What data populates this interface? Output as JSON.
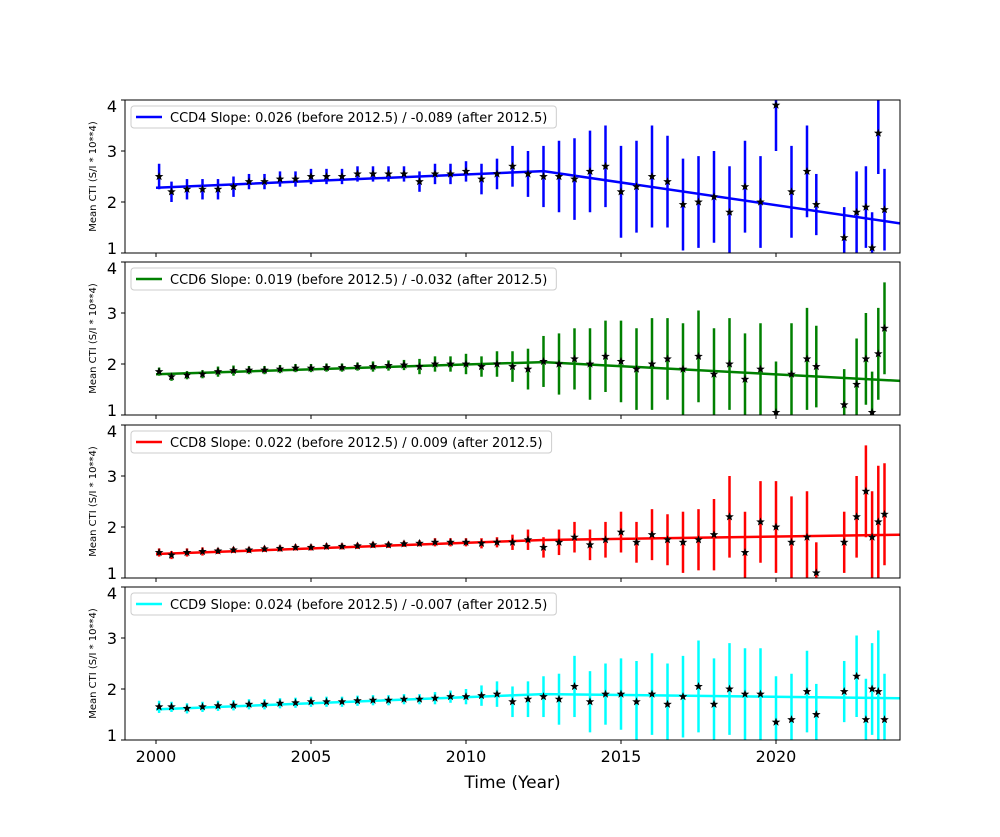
{
  "chart_data": [
    {
      "type": "scatter",
      "series_name": "CCD4",
      "legend": "CCD4 Slope: 0.026 (before 2012.5) / -0.089 (after 2012.5)",
      "color": "#0000ff",
      "ylabel": "Mean CTI (S/I * 10**4)",
      "ylim": [
        1,
        4
      ],
      "yticks": [
        "1",
        "2",
        "3",
        "4"
      ],
      "fit": {
        "break": 2012.5,
        "start_value": 2.28,
        "slope_before": 0.026,
        "slope_after": -0.089
      },
      "y": [
        2.5,
        2.2,
        2.25,
        2.25,
        2.25,
        2.3,
        2.4,
        2.4,
        2.45,
        2.45,
        2.5,
        2.5,
        2.5,
        2.55,
        2.55,
        2.55,
        2.55,
        2.4,
        2.55,
        2.55,
        2.6,
        2.45,
        2.55,
        2.7,
        2.55,
        2.5,
        2.5,
        2.45,
        2.6,
        2.7,
        2.2,
        2.3,
        2.5,
        2.4,
        1.95,
        2.0,
        2.1,
        1.8,
        2.3,
        2.0,
        3.9,
        2.2,
        2.6,
        1.95,
        1.3,
        1.8,
        1.9,
        1.1,
        3.35,
        1.85
      ],
      "err": [
        0.25,
        0.2,
        0.2,
        0.2,
        0.2,
        0.2,
        0.15,
        0.15,
        0.15,
        0.15,
        0.15,
        0.15,
        0.15,
        0.15,
        0.15,
        0.15,
        0.15,
        0.2,
        0.2,
        0.2,
        0.2,
        0.3,
        0.3,
        0.4,
        0.45,
        0.6,
        0.7,
        0.8,
        0.8,
        0.8,
        0.9,
        0.9,
        1.0,
        0.9,
        0.9,
        0.9,
        0.9,
        0.9,
        0.9,
        0.9,
        0.9,
        0.9,
        0.9,
        0.6,
        0.6,
        0.8,
        0.8,
        0.7,
        0.8,
        0.8
      ]
    },
    {
      "type": "scatter",
      "series_name": "CCD6",
      "legend": "CCD6 Slope: 0.019 (before 2012.5) / -0.032 (after 2012.5)",
      "color": "#008000",
      "ylabel": "Mean CTI (S/I * 10**4)",
      "ylim": [
        1,
        4
      ],
      "yticks": [
        "1",
        "2",
        "3",
        "4"
      ],
      "fit": {
        "break": 2012.5,
        "start_value": 1.8,
        "slope_before": 0.019,
        "slope_after": -0.032
      },
      "y": [
        1.85,
        1.75,
        1.78,
        1.8,
        1.85,
        1.87,
        1.88,
        1.88,
        1.9,
        1.92,
        1.92,
        1.93,
        1.93,
        1.95,
        1.95,
        1.97,
        1.98,
        1.95,
        2.0,
        2.0,
        2.0,
        1.95,
        2.0,
        1.95,
        1.9,
        2.05,
        2.0,
        2.1,
        2.0,
        2.15,
        2.05,
        1.9,
        2.0,
        2.1,
        1.9,
        2.15,
        1.8,
        2.0,
        1.7,
        1.9,
        1.05,
        1.8,
        2.1,
        1.95,
        1.2,
        1.6,
        2.1,
        1.05,
        2.2,
        2.7
      ],
      "err": [
        0.08,
        0.08,
        0.08,
        0.08,
        0.1,
        0.1,
        0.08,
        0.08,
        0.08,
        0.08,
        0.08,
        0.08,
        0.08,
        0.08,
        0.1,
        0.1,
        0.1,
        0.15,
        0.15,
        0.15,
        0.2,
        0.2,
        0.25,
        0.3,
        0.4,
        0.5,
        0.6,
        0.6,
        0.7,
        0.7,
        0.8,
        0.8,
        0.9,
        0.8,
        0.9,
        0.9,
        0.9,
        0.9,
        0.9,
        0.9,
        1.0,
        1.0,
        1.0,
        0.8,
        0.7,
        0.9,
        0.9,
        0.8,
        0.9,
        0.9
      ]
    },
    {
      "type": "scatter",
      "series_name": "CCD8",
      "legend": "CCD8 Slope: 0.022 (before 2012.5) / 0.009 (after 2012.5)",
      "color": "#ff0000",
      "ylabel": "Mean CTI (S/I * 10**4)",
      "ylim": [
        1,
        4
      ],
      "yticks": [
        "1",
        "2",
        "3",
        "4"
      ],
      "fit": {
        "break": 2012.5,
        "start_value": 1.47,
        "slope_before": 0.022,
        "slope_after": 0.009
      },
      "y": [
        1.5,
        1.45,
        1.5,
        1.52,
        1.53,
        1.55,
        1.55,
        1.57,
        1.58,
        1.6,
        1.6,
        1.62,
        1.62,
        1.63,
        1.65,
        1.65,
        1.67,
        1.68,
        1.7,
        1.7,
        1.7,
        1.68,
        1.7,
        1.7,
        1.75,
        1.6,
        1.7,
        1.8,
        1.65,
        1.75,
        1.9,
        1.7,
        1.85,
        1.75,
        1.7,
        1.75,
        1.85,
        2.2,
        1.5,
        2.1,
        2.0,
        1.7,
        1.8,
        1.1,
        1.7,
        2.2,
        2.7,
        1.8,
        2.1,
        2.25
      ],
      "err": [
        0.08,
        0.08,
        0.08,
        0.08,
        0.06,
        0.06,
        0.06,
        0.06,
        0.06,
        0.06,
        0.06,
        0.06,
        0.06,
        0.06,
        0.06,
        0.06,
        0.06,
        0.06,
        0.08,
        0.08,
        0.08,
        0.1,
        0.1,
        0.15,
        0.2,
        0.2,
        0.25,
        0.3,
        0.3,
        0.35,
        0.4,
        0.4,
        0.5,
        0.5,
        0.6,
        0.6,
        0.7,
        0.8,
        0.8,
        0.8,
        0.9,
        0.9,
        0.9,
        0.6,
        0.6,
        0.8,
        0.9,
        0.9,
        1.1,
        1.0
      ]
    },
    {
      "type": "scatter",
      "series_name": "CCD9",
      "legend": "CCD9 Slope: 0.024 (before 2012.5) / -0.007 (after 2012.5)",
      "color": "#00ffff",
      "ylabel": "Mean CTI (S/I * 10**4)",
      "ylim": [
        1,
        4
      ],
      "yticks": [
        "1",
        "2",
        "3",
        "4"
      ],
      "fit": {
        "break": 2012.5,
        "start_value": 1.6,
        "slope_before": 0.024,
        "slope_after": -0.007
      },
      "y": [
        1.65,
        1.65,
        1.62,
        1.65,
        1.67,
        1.68,
        1.7,
        1.7,
        1.72,
        1.73,
        1.75,
        1.75,
        1.75,
        1.77,
        1.78,
        1.78,
        1.8,
        1.8,
        1.82,
        1.85,
        1.85,
        1.87,
        1.9,
        1.75,
        1.8,
        1.85,
        1.8,
        2.05,
        1.75,
        1.9,
        1.9,
        1.75,
        1.9,
        1.7,
        1.85,
        2.05,
        1.7,
        2.0,
        1.9,
        1.9,
        1.35,
        1.4,
        1.95,
        1.5,
        1.95,
        2.25,
        1.4,
        2.0,
        1.95,
        1.4
      ],
      "err": [
        0.12,
        0.1,
        0.1,
        0.1,
        0.1,
        0.1,
        0.1,
        0.1,
        0.1,
        0.1,
        0.1,
        0.1,
        0.1,
        0.1,
        0.1,
        0.1,
        0.1,
        0.1,
        0.12,
        0.12,
        0.15,
        0.2,
        0.25,
        0.3,
        0.35,
        0.4,
        0.5,
        0.6,
        0.6,
        0.6,
        0.7,
        0.8,
        0.8,
        0.8,
        0.8,
        0.9,
        0.9,
        0.9,
        0.9,
        0.9,
        0.9,
        0.9,
        0.8,
        0.6,
        0.6,
        0.8,
        0.8,
        0.9,
        1.2,
        0.9
      ]
    }
  ],
  "shared": {
    "x": [
      2000.1,
      2000.5,
      2001,
      2001.5,
      2002,
      2002.5,
      2003,
      2003.5,
      2004,
      2004.5,
      2005,
      2005.5,
      2006,
      2006.5,
      2007,
      2007.5,
      2008,
      2008.5,
      2009,
      2009.5,
      2010,
      2010.5,
      2011,
      2011.5,
      2012,
      2012.5,
      2013,
      2013.5,
      2014,
      2014.5,
      2015,
      2015.5,
      2016,
      2016.5,
      2017,
      2017.5,
      2018,
      2018.5,
      2019,
      2019.5,
      2020,
      2020.5,
      2021,
      2021.3,
      2022.2,
      2022.6,
      2022.9,
      2023.1,
      2023.3,
      2023.5
    ],
    "xlim": [
      1999,
      2024
    ],
    "xticks": [
      "2000",
      "2005",
      "2010",
      "2015",
      "2020"
    ],
    "xlabel": "Time (Year)",
    "marker_color": "#000000",
    "grid": false,
    "legend_placement": "top-left"
  }
}
